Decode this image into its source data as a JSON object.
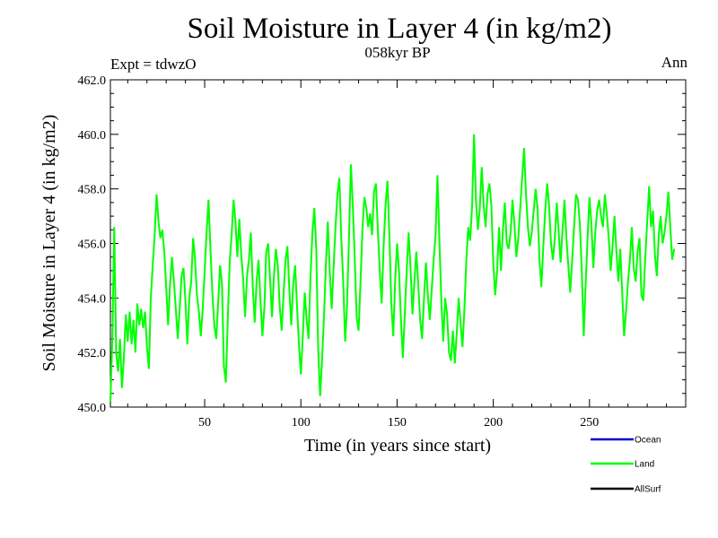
{
  "chart_data": {
    "type": "line",
    "title": "Soil Moisture in Layer 4 (in kg/m2)",
    "subtitle": "058kyr BP",
    "experiment_label": "Expt = tdwzO",
    "season_label": "Ann",
    "xlabel": "Time (in years since start)",
    "ylabel": "Soil Moisture in Layer 4 (in kg/m2)",
    "xlim": [
      1,
      300
    ],
    "ylim": [
      450.0,
      462.0
    ],
    "xticks": [
      50,
      100,
      150,
      200,
      250
    ],
    "yticks": [
      "450.0",
      "452.0",
      "454.0",
      "456.0",
      "458.0",
      "460.0",
      "462.0"
    ],
    "grid": false,
    "legend_position": "bottom-right",
    "legend": [
      {
        "name": "Ocean",
        "color": "#0000cc"
      },
      {
        "name": "Land",
        "color": "#00ff00"
      },
      {
        "name": "AllSurf",
        "color": "#000000"
      }
    ],
    "series": [
      {
        "name": "Land",
        "color": "#00ff00",
        "x_start": 1,
        "x_step": 1,
        "values": [
          450.2,
          452.5,
          456.6,
          452.0,
          451.3,
          452.5,
          450.7,
          451.8,
          453.4,
          452.4,
          453.5,
          452.3,
          453.2,
          452.0,
          453.8,
          453.0,
          453.6,
          452.9,
          453.5,
          452.2,
          451.4,
          454.0,
          455.2,
          456.3,
          457.8,
          456.8,
          456.2,
          456.5,
          455.7,
          454.4,
          453.0,
          454.5,
          455.5,
          454.6,
          453.6,
          452.5,
          453.6,
          454.8,
          455.1,
          453.9,
          452.3,
          454.0,
          454.6,
          456.2,
          455.4,
          454.1,
          453.5,
          452.6,
          453.6,
          455.0,
          456.4,
          457.6,
          455.8,
          454.2,
          453.0,
          452.5,
          453.8,
          455.2,
          454.5,
          451.5,
          450.9,
          453.2,
          455.3,
          456.3,
          457.6,
          456.8,
          455.5,
          456.9,
          455.6,
          454.7,
          453.3,
          454.8,
          455.4,
          456.4,
          454.4,
          453.1,
          454.6,
          455.4,
          453.9,
          452.6,
          453.6,
          455.7,
          456.0,
          454.7,
          453.3,
          454.8,
          455.8,
          455.2,
          453.7,
          452.8,
          454.1,
          455.4,
          455.9,
          454.3,
          453.0,
          454.5,
          455.2,
          453.7,
          452.3,
          451.2,
          452.6,
          454.2,
          453.2,
          452.5,
          454.8,
          456.4,
          457.3,
          455.8,
          452.1,
          450.4,
          451.7,
          453.3,
          455.2,
          456.8,
          455.0,
          453.6,
          455.1,
          456.6,
          457.8,
          458.4,
          456.2,
          454.6,
          452.4,
          453.7,
          456.2,
          458.9,
          457.4,
          455.4,
          453.3,
          452.8,
          454.6,
          456.5,
          457.7,
          457.3,
          456.6,
          457.1,
          456.3,
          457.9,
          458.2,
          456.5,
          455.0,
          453.8,
          455.9,
          457.4,
          458.3,
          456.3,
          453.8,
          452.6,
          454.6,
          456.0,
          455.0,
          453.2,
          451.8,
          453.4,
          455.0,
          456.4,
          455.1,
          453.4,
          454.6,
          455.7,
          454.5,
          453.2,
          452.5,
          454.0,
          455.3,
          454.1,
          453.2,
          454.3,
          455.4,
          456.3,
          458.5,
          456.1,
          453.9,
          452.4,
          454.0,
          453.4,
          452.0,
          451.7,
          452.8,
          451.6,
          452.7,
          454.0,
          453.1,
          452.2,
          453.6,
          455.4,
          456.6,
          456.1,
          457.4,
          460.0,
          457.6,
          456.5,
          457.3,
          458.8,
          457.4,
          456.6,
          457.8,
          458.2,
          457.4,
          455.3,
          454.1,
          455.0,
          456.6,
          455.0,
          456.5,
          457.5,
          456.0,
          455.8,
          456.4,
          457.6,
          456.7,
          455.5,
          456.2,
          457.3,
          458.4,
          459.5,
          457.8,
          456.6,
          455.9,
          456.4,
          457.2,
          458.0,
          457.3,
          455.4,
          454.4,
          455.9,
          457.2,
          458.2,
          457.4,
          456.0,
          455.4,
          456.2,
          457.5,
          456.4,
          455.3,
          456.5,
          457.6,
          456.2,
          455.2,
          454.2,
          455.4,
          456.6,
          457.8,
          457.6,
          456.7,
          455.0,
          452.6,
          454.5,
          456.2,
          457.7,
          456.7,
          455.1,
          456.4,
          457.2,
          457.6,
          457.0,
          456.6,
          457.8,
          457.1,
          456.2,
          455.0,
          455.9,
          457.0,
          455.7,
          454.6,
          455.8,
          454.2,
          452.6,
          453.5,
          454.6,
          455.4,
          456.6,
          455.1,
          454.6,
          455.7,
          456.2,
          454.1,
          453.9,
          455.5,
          456.8,
          458.1,
          456.6,
          457.2,
          455.6,
          454.8,
          456.3,
          457.0,
          456.0,
          456.4,
          457.0,
          457.9,
          456.6,
          455.4,
          455.8
        ]
      }
    ]
  }
}
